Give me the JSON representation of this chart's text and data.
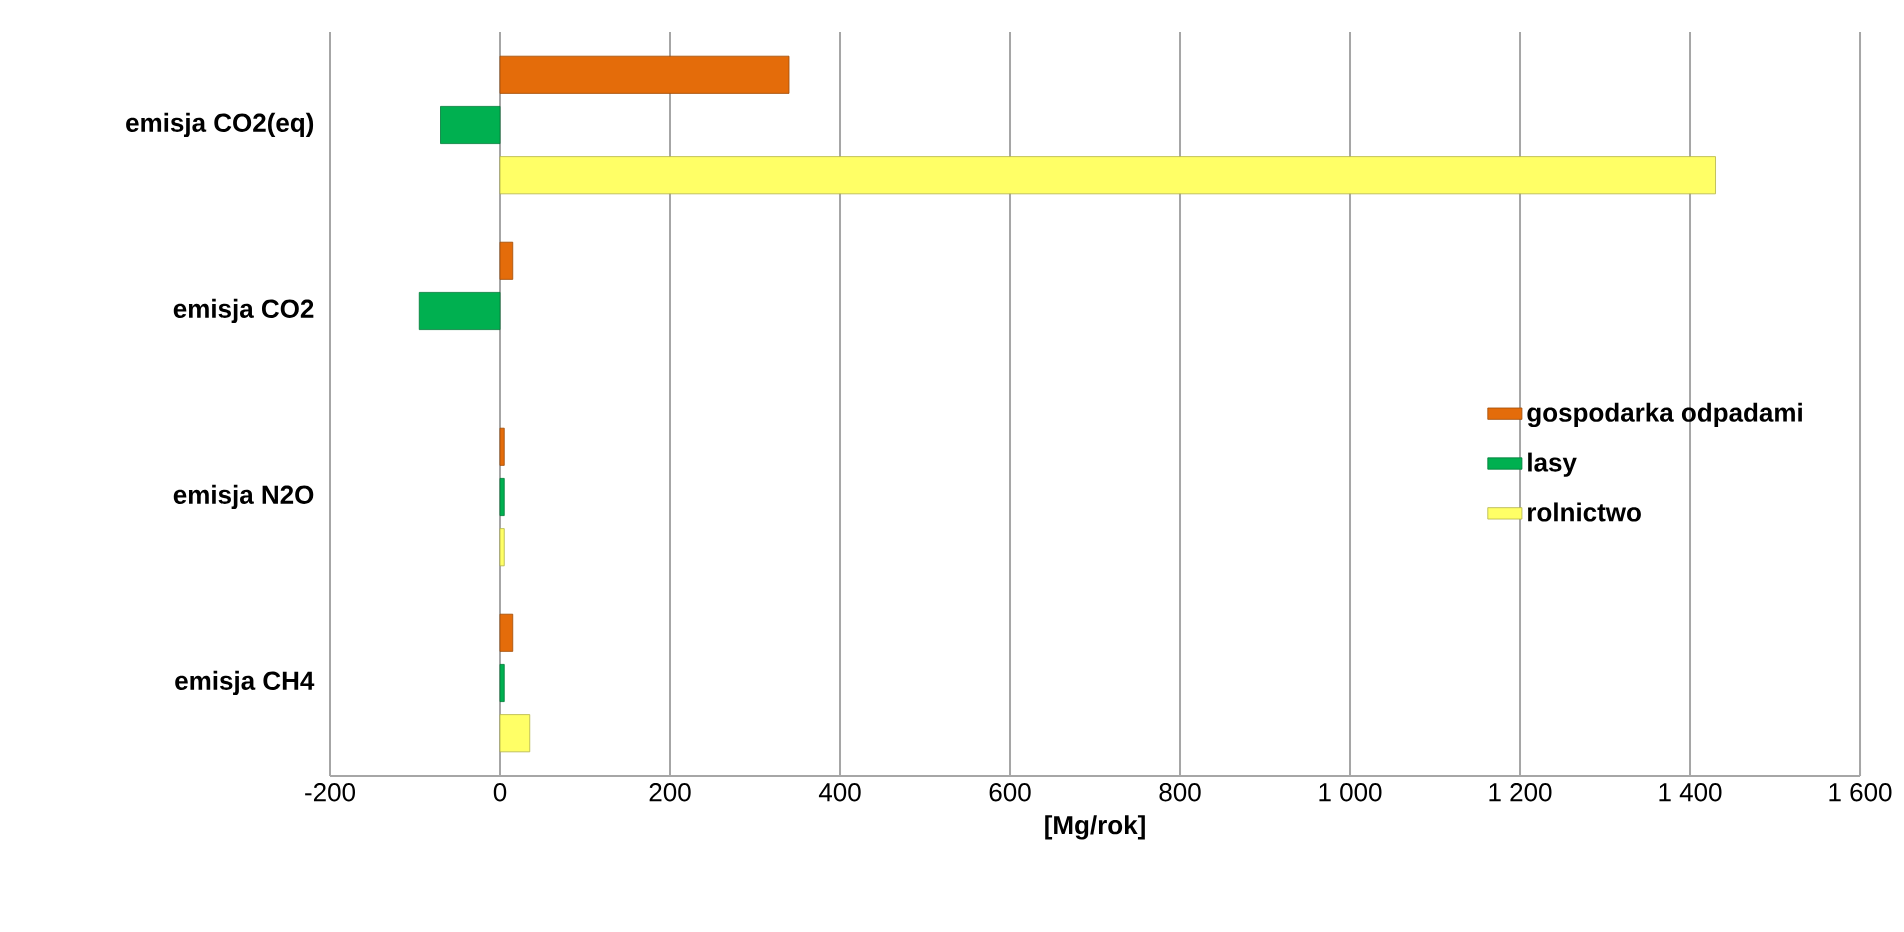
{
  "chart_data": {
    "type": "bar",
    "orientation": "horizontal",
    "xlabel": "[Mg/rok]",
    "categories": [
      "emisja CO2(eq)",
      "emisja CO2",
      "emisja N2O",
      "emisja CH4"
    ],
    "series": [
      {
        "name": "gospodarka odpadami",
        "color": "#e46c0a",
        "values": [
          340,
          15,
          5,
          15
        ]
      },
      {
        "name": "lasy",
        "color": "#00b050",
        "values": [
          -70,
          -95,
          5,
          5
        ]
      },
      {
        "name": "rolnictwo",
        "color": "#ffff66",
        "values": [
          1430,
          null,
          5,
          35
        ]
      }
    ],
    "xlim": [
      -200,
      1600
    ],
    "xticks": [
      -200,
      0,
      200,
      400,
      600,
      800,
      {
        "value": 1000,
        "label": "1 000"
      },
      {
        "value": 1200,
        "label": "1 200"
      },
      {
        "value": 1400,
        "label": "1 400"
      },
      {
        "value": 1600,
        "label": "1 600"
      }
    ],
    "grid": "x",
    "legend": "right"
  }
}
